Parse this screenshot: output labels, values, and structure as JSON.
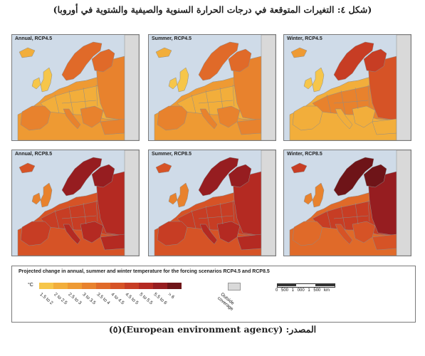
{
  "title": "(شكل ٤: التغيرات المتوقعة في درجات الحرارة السنوية والصيفية والشتوية في أوروبا)",
  "panels": [
    {
      "label": "Annual, RCP4.5",
      "scheme": "mild"
    },
    {
      "label": "Summer, RCP4.5",
      "scheme": "mild"
    },
    {
      "label": "Winter, RCP4.5",
      "scheme": "winter45"
    },
    {
      "label": "Annual, RCP8.5",
      "scheme": "hot"
    },
    {
      "label": "Summer, RCP8.5",
      "scheme": "hot"
    },
    {
      "label": "Winter, RCP8.5",
      "scheme": "winter85"
    }
  ],
  "legend": {
    "title": "Projected change in annual, summer and winter temperature for the forcing scenarios RCP4.5 and RCP8.5",
    "unit": "°C",
    "classes": [
      {
        "label": "1.5 to 2",
        "color": "#f6c64a"
      },
      {
        "label": "2 to 2.5",
        "color": "#f2ae3b"
      },
      {
        "label": "2.5 to 3",
        "color": "#ee9a33"
      },
      {
        "label": "3 to 3.5",
        "color": "#e8822d"
      },
      {
        "label": "3.5 to 4",
        "color": "#e06a29"
      },
      {
        "label": "4 to 4.5",
        "color": "#d65326"
      },
      {
        "label": "4.5 to 5",
        "color": "#c73d24"
      },
      {
        "label": "5 to 5.5",
        "color": "#b42a22"
      },
      {
        "label": "5.5 to 6",
        "color": "#961d20"
      },
      {
        "label": "> 6",
        "color": "#6e1418"
      }
    ],
    "outside_label": "Outside coverage",
    "outside_color": "#d9d9d9",
    "scale_text": "0 500 1 000 1 500 km"
  },
  "colors": {
    "sea": "#cfdbe8",
    "border": "#8c8c8c"
  },
  "source_text": "المصدر: (European environment agency)(٥)"
}
